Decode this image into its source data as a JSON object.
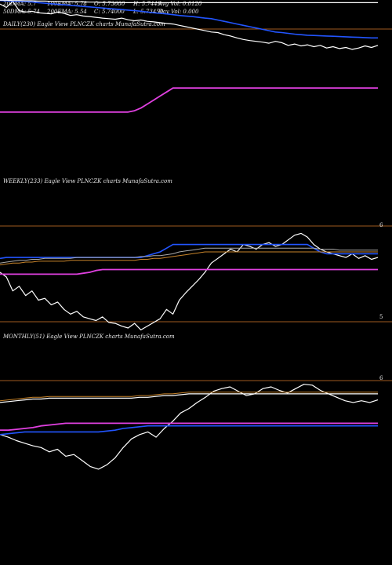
{
  "header": {
    "row1": [
      "20DMA: 5.7",
      "100EMA: 5.78",
      "O: 5.73680",
      "H: 5.7449",
      "Avg Vol: 0.0120"
    ],
    "row2": [
      "50DMA: 5.74",
      "200EMA: 5.54",
      "C: 5.74000",
      "L: 5.73450",
      "Day Vol: 0.000"
    ]
  },
  "colors": {
    "price": "#ffffff",
    "ma_blue": "#2255ff",
    "ma_white": "#ffffff",
    "ma_gray": "#aaaaaa",
    "ma_orange": "#c8842a",
    "ma_magenta": "#e040e0",
    "ref_line": "#a05a20"
  },
  "chart_data": [
    {
      "type": "line",
      "panel": "daily",
      "title": "DAILY(230) Eagle  View  PLNCZK charts MunafaSutra.com",
      "yticks": [],
      "series": [
        {
          "key": "price",
          "values": [
            0.85,
            0.72,
            0.95,
            0.6,
            0.55,
            0.58,
            0.52,
            0.5,
            0.48,
            0.55,
            0.5,
            0.42,
            0.45,
            0.4,
            0.38,
            0.35,
            0.32,
            0.3,
            0.28,
            0.32,
            0.26,
            0.22,
            0.25,
            0.2,
            0.18,
            0.15,
            0.12,
            0.1,
            0.05,
            0.0,
            -0.05,
            -0.1,
            -0.15,
            -0.2,
            -0.22,
            -0.3,
            -0.35,
            -0.42,
            -0.48,
            -0.52,
            -0.55,
            -0.58,
            -0.62,
            -0.55,
            -0.6,
            -0.7,
            -0.65,
            -0.72,
            -0.68,
            -0.75,
            -0.7,
            -0.8,
            -0.75,
            -0.82,
            -0.78,
            -0.85,
            -0.8,
            -0.72,
            -0.78,
            -0.7
          ]
        },
        {
          "key": "ma_blue",
          "values": [
            0.98,
            0.97,
            0.96,
            0.95,
            0.94,
            0.93,
            0.9,
            0.88,
            0.86,
            0.84,
            0.82,
            0.8,
            0.78,
            0.76,
            0.74,
            0.72,
            0.7,
            0.68,
            0.66,
            0.64,
            0.62,
            0.6,
            0.58,
            0.55,
            0.52,
            0.5,
            0.48,
            0.45,
            0.42,
            0.4,
            0.38,
            0.35,
            0.32,
            0.3,
            0.25,
            0.2,
            0.15,
            0.1,
            0.05,
            0.0,
            -0.05,
            -0.1,
            -0.15,
            -0.2,
            -0.22,
            -0.25,
            -0.28,
            -0.3,
            -0.32,
            -0.33,
            -0.34,
            -0.35,
            -0.36,
            -0.37,
            -0.38,
            -0.39,
            -0.4,
            -0.41,
            -0.42,
            -0.42
          ]
        },
        {
          "key": "ma_white",
          "values": [
            0.99,
            0.99,
            0.98,
            0.98,
            0.97,
            0.97,
            0.96,
            0.96,
            0.95,
            0.95,
            0.94,
            0.94,
            0.93,
            0.93,
            0.92,
            0.92,
            0.91,
            0.91,
            0.9,
            0.9,
            0.9,
            0.9,
            0.9,
            0.9,
            0.9,
            0.9,
            0.9,
            0.9,
            0.9,
            0.9,
            0.9,
            0.9,
            0.9,
            0.9,
            0.9,
            0.9,
            0.9,
            0.9,
            0.9,
            0.9,
            0.9,
            0.9,
            0.9,
            0.9,
            0.9,
            0.9,
            0.9,
            0.9,
            0.9,
            0.9,
            0.9,
            0.9,
            0.9,
            0.9,
            0.9,
            0.9,
            0.9,
            0.9,
            0.9,
            0.9
          ]
        },
        {
          "key": "ma_magenta",
          "values": [
            -3.2,
            -3.2,
            -3.2,
            -3.2,
            -3.2,
            -3.2,
            -3.2,
            -3.2,
            -3.2,
            -3.2,
            -3.2,
            -3.2,
            -3.2,
            -3.2,
            -3.2,
            -3.2,
            -3.2,
            -3.2,
            -3.2,
            -3.2,
            -3.2,
            -3.15,
            -3.05,
            -2.9,
            -2.75,
            -2.6,
            -2.45,
            -2.3,
            -2.3,
            -2.3,
            -2.3,
            -2.3,
            -2.3,
            -2.3,
            -2.3,
            -2.3,
            -2.3,
            -2.3,
            -2.3,
            -2.3,
            -2.3,
            -2.3,
            -2.3,
            -2.3,
            -2.3,
            -2.3,
            -2.3,
            -2.3,
            -2.3,
            -2.3,
            -2.3,
            -2.3,
            -2.3,
            -2.3,
            -2.3,
            -2.3,
            -2.3,
            -2.3,
            -2.3,
            -2.3
          ]
        }
      ],
      "ylim": [
        -4,
        1
      ]
    },
    {
      "type": "line",
      "panel": "weekly",
      "title": "WEEKLY(233) Eagle  View  PLNCZK charts MunafaSutra.com",
      "yticks": [
        "6",
        "5"
      ],
      "series": [
        {
          "key": "price",
          "values": [
            5.5,
            5.45,
            5.3,
            5.35,
            5.25,
            5.3,
            5.2,
            5.22,
            5.15,
            5.18,
            5.1,
            5.05,
            5.08,
            5.02,
            5.0,
            4.98,
            5.02,
            4.96,
            4.95,
            4.92,
            4.9,
            4.95,
            4.88,
            4.92,
            4.96,
            5.0,
            5.1,
            5.05,
            5.2,
            5.28,
            5.35,
            5.42,
            5.5,
            5.6,
            5.65,
            5.7,
            5.75,
            5.72,
            5.8,
            5.78,
            5.75,
            5.8,
            5.82,
            5.78,
            5.8,
            5.85,
            5.9,
            5.92,
            5.88,
            5.8,
            5.75,
            5.72,
            5.7,
            5.68,
            5.66,
            5.7,
            5.65,
            5.68,
            5.64,
            5.66
          ]
        },
        {
          "key": "ma_blue",
          "values": [
            5.65,
            5.66,
            5.66,
            5.66,
            5.66,
            5.66,
            5.66,
            5.66,
            5.66,
            5.66,
            5.66,
            5.66,
            5.66,
            5.66,
            5.66,
            5.66,
            5.66,
            5.66,
            5.66,
            5.66,
            5.66,
            5.66,
            5.66,
            5.68,
            5.7,
            5.72,
            5.76,
            5.8,
            5.8,
            5.8,
            5.8,
            5.8,
            5.8,
            5.8,
            5.8,
            5.8,
            5.8,
            5.8,
            5.8,
            5.8,
            5.8,
            5.8,
            5.8,
            5.8,
            5.8,
            5.8,
            5.8,
            5.8,
            5.8,
            5.76,
            5.72,
            5.7,
            5.7,
            5.7,
            5.7,
            5.7,
            5.7,
            5.7,
            5.7,
            5.7
          ]
        },
        {
          "key": "ma_gray",
          "values": [
            5.6,
            5.61,
            5.62,
            5.63,
            5.63,
            5.64,
            5.64,
            5.65,
            5.65,
            5.65,
            5.65,
            5.65,
            5.66,
            5.66,
            5.66,
            5.66,
            5.66,
            5.66,
            5.66,
            5.66,
            5.66,
            5.66,
            5.67,
            5.67,
            5.68,
            5.68,
            5.69,
            5.7,
            5.72,
            5.73,
            5.74,
            5.75,
            5.76,
            5.76,
            5.76,
            5.76,
            5.76,
            5.76,
            5.76,
            5.76,
            5.76,
            5.76,
            5.76,
            5.76,
            5.76,
            5.76,
            5.76,
            5.76,
            5.76,
            5.76,
            5.75,
            5.75,
            5.75,
            5.74,
            5.74,
            5.74,
            5.74,
            5.74,
            5.74,
            5.74
          ]
        },
        {
          "key": "ma_orange",
          "values": [
            5.58,
            5.59,
            5.6,
            5.6,
            5.61,
            5.61,
            5.62,
            5.62,
            5.62,
            5.62,
            5.62,
            5.63,
            5.63,
            5.63,
            5.63,
            5.63,
            5.63,
            5.63,
            5.63,
            5.63,
            5.63,
            5.63,
            5.64,
            5.64,
            5.65,
            5.65,
            5.66,
            5.67,
            5.68,
            5.69,
            5.7,
            5.71,
            5.72,
            5.72,
            5.72,
            5.72,
            5.72,
            5.72,
            5.72,
            5.72,
            5.72,
            5.72,
            5.72,
            5.72,
            5.72,
            5.72,
            5.72,
            5.72,
            5.72,
            5.72,
            5.72,
            5.72,
            5.72,
            5.72,
            5.72,
            5.72,
            5.72,
            5.72,
            5.72,
            5.72
          ]
        },
        {
          "key": "ma_magenta",
          "values": [
            5.48,
            5.48,
            5.48,
            5.48,
            5.48,
            5.48,
            5.48,
            5.48,
            5.48,
            5.48,
            5.48,
            5.48,
            5.48,
            5.49,
            5.5,
            5.52,
            5.53,
            5.53,
            5.53,
            5.53,
            5.53,
            5.53,
            5.53,
            5.53,
            5.53,
            5.53,
            5.53,
            5.53,
            5.53,
            5.53,
            5.53,
            5.53,
            5.53,
            5.53,
            5.53,
            5.53,
            5.53,
            5.53,
            5.53,
            5.53,
            5.53,
            5.53,
            5.53,
            5.53,
            5.53,
            5.53,
            5.53,
            5.53,
            5.53,
            5.53,
            5.53,
            5.53,
            5.53,
            5.53,
            5.53,
            5.53,
            5.53,
            5.53,
            5.53,
            5.53
          ]
        }
      ],
      "ylim": [
        4.9,
        6.05
      ]
    },
    {
      "type": "line",
      "panel": "monthly",
      "title": "MONTHLY(51) Eagle  View  PLNCZK charts MunafaSutra.com",
      "yticks": [
        "6"
      ],
      "series": [
        {
          "key": "price",
          "values": [
            5.45,
            5.42,
            5.38,
            5.35,
            5.32,
            5.3,
            5.25,
            5.28,
            5.2,
            5.22,
            5.15,
            5.08,
            5.05,
            5.1,
            5.18,
            5.3,
            5.4,
            5.45,
            5.48,
            5.42,
            5.52,
            5.6,
            5.7,
            5.75,
            5.82,
            5.88,
            5.95,
            5.98,
            6.0,
            5.95,
            5.9,
            5.92,
            5.98,
            6.0,
            5.96,
            5.93,
            5.98,
            6.03,
            6.02,
            5.96,
            5.92,
            5.88,
            5.84,
            5.82,
            5.84,
            5.82,
            5.85
          ]
        },
        {
          "key": "ma_blue",
          "values": [
            5.45,
            5.46,
            5.47,
            5.48,
            5.48,
            5.48,
            5.48,
            5.48,
            5.48,
            5.48,
            5.48,
            5.48,
            5.48,
            5.49,
            5.5,
            5.52,
            5.53,
            5.54,
            5.55,
            5.55,
            5.55,
            5.55,
            5.55,
            5.55,
            5.55,
            5.55,
            5.55,
            5.55,
            5.55,
            5.55,
            5.55,
            5.55,
            5.55,
            5.55,
            5.55,
            5.55,
            5.55,
            5.55,
            5.55,
            5.55,
            5.55,
            5.55,
            5.55,
            5.55,
            5.55,
            5.55,
            5.55
          ]
        },
        {
          "key": "ma_white",
          "values": [
            5.82,
            5.83,
            5.84,
            5.85,
            5.86,
            5.86,
            5.87,
            5.87,
            5.87,
            5.87,
            5.87,
            5.87,
            5.87,
            5.87,
            5.87,
            5.87,
            5.87,
            5.88,
            5.88,
            5.89,
            5.9,
            5.9,
            5.91,
            5.92,
            5.92,
            5.92,
            5.92,
            5.92,
            5.92,
            5.92,
            5.92,
            5.92,
            5.92,
            5.92,
            5.92,
            5.92,
            5.92,
            5.92,
            5.92,
            5.92,
            5.92,
            5.92,
            5.92,
            5.92,
            5.92,
            5.92,
            5.92
          ]
        },
        {
          "key": "ma_orange",
          "values": [
            5.84,
            5.85,
            5.86,
            5.87,
            5.88,
            5.88,
            5.89,
            5.89,
            5.89,
            5.89,
            5.89,
            5.89,
            5.89,
            5.89,
            5.89,
            5.89,
            5.89,
            5.9,
            5.9,
            5.91,
            5.92,
            5.92,
            5.93,
            5.94,
            5.94,
            5.94,
            5.94,
            5.94,
            5.94,
            5.94,
            5.94,
            5.94,
            5.94,
            5.94,
            5.94,
            5.94,
            5.94,
            5.94,
            5.94,
            5.94,
            5.94,
            5.94,
            5.94,
            5.94,
            5.94,
            5.94,
            5.94
          ]
        },
        {
          "key": "ma_magenta",
          "values": [
            5.5,
            5.5,
            5.51,
            5.52,
            5.53,
            5.55,
            5.56,
            5.57,
            5.58,
            5.58,
            5.58,
            5.58,
            5.58,
            5.58,
            5.58,
            5.58,
            5.58,
            5.58,
            5.58,
            5.58,
            5.58,
            5.58,
            5.58,
            5.58,
            5.58,
            5.58,
            5.58,
            5.58,
            5.58,
            5.58,
            5.58,
            5.58,
            5.58,
            5.58,
            5.58,
            5.58,
            5.58,
            5.58,
            5.58,
            5.58,
            5.58,
            5.58,
            5.58,
            5.58,
            5.58,
            5.58,
            5.58
          ]
        }
      ],
      "ylim": [
        4.85,
        6.1
      ]
    }
  ]
}
